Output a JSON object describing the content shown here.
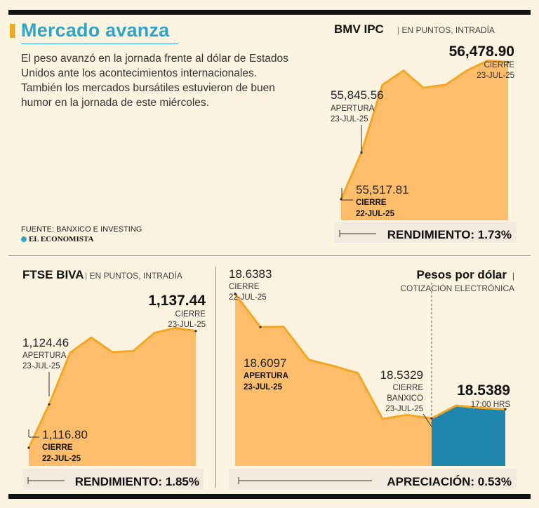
{
  "header": {
    "title": "Mercado avanza",
    "lede": "El peso avanzó en la jornada frente al dólar de Estados Unidos ante los acontecimientos internacionales. También los mercados bursátiles estuvieron de buen humor en la jornada de este miércoles.",
    "source": "FUENTE: BANXICO E INVESTING",
    "brand": "EL ECONOMISTA"
  },
  "colors": {
    "accent": "#2fa5c8",
    "fill": "#fdbd6b",
    "line": "#f5a623",
    "after_close": "#1f86ad",
    "background": "#fdf3e1"
  },
  "chart_data": [
    {
      "id": "bmv",
      "type": "area",
      "title": "BMV IPC",
      "subtitle": "EN PUNTOS, INTRADÍA",
      "series": [
        {
          "values": [
            55517.81,
            55845.56,
            56320,
            56420,
            56300,
            56320,
            56420,
            56490,
            56478.9
          ]
        }
      ],
      "ylim": [
        55370,
        56600
      ],
      "annotations": {
        "close_value": "56,478.90",
        "close_label": "CIERRE",
        "close_date": "23-JUL-25",
        "open_value": "55,845.56",
        "open_label": "APERTURA",
        "open_date": "23-JUL-25",
        "prev_value": "55,517.81",
        "prev_label": "CIERRE",
        "prev_date": "22-JUL-25"
      },
      "performance": "RENDIMIENTO: 1.73%"
    },
    {
      "id": "ftse",
      "type": "area",
      "title": "FTSE BIVA",
      "subtitle": "EN PUNTOS, INTRADÍA",
      "series": [
        {
          "values": [
            1116.8,
            1124.46,
            1133.6,
            1136.3,
            1133.7,
            1133.9,
            1137.1,
            1138.0,
            1137.44
          ]
        }
      ],
      "ylim": [
        1113.6,
        1142
      ],
      "annotations": {
        "close_value": "1,137.44",
        "close_label": "CIERRE",
        "close_date": "23-JUL-25",
        "open_value": "1,124.46",
        "open_label": "APERTURA",
        "open_date": "23-JUL-25",
        "prev_value": "1,116.80",
        "prev_label": "CIERRE",
        "prev_date": "22-JUL-25"
      },
      "performance": "RENDIMIENTO: 1.85%"
    },
    {
      "id": "usd",
      "type": "area",
      "title": "Pesos por dólar",
      "subtitle": "COTIZACIÓN ELECTRÓNICA",
      "series": [
        {
          "values": [
            18.6383,
            18.6097,
            18.61,
            18.5815,
            18.576,
            18.57,
            18.5305,
            18.534,
            18.531
          ]
        },
        {
          "values": [
            18.531,
            18.542,
            18.54,
            18.5389
          ]
        }
      ],
      "ylim": [
        18.49,
        18.66
      ],
      "annotations": {
        "start_value": "18.6383",
        "start_label": "CIERRE",
        "start_date": "22-JUL-25",
        "open_value": "18.6097",
        "open_label": "APERTURA",
        "open_date": "23-JUL-25",
        "banxico_value": "18.5329",
        "banxico_label1": "CIERRE",
        "banxico_label2": "BANXICO",
        "banxico_date": "23-JUL-25",
        "last_value": "18.5389",
        "last_time": "17:00 HRS"
      },
      "performance": "APRECIACIÓN: 0.53%"
    }
  ]
}
